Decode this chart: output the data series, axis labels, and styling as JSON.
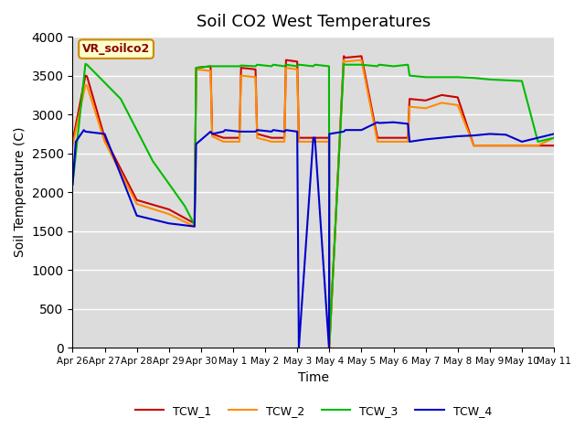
{
  "title": "Soil CO2 West Temperatures",
  "xlabel": "Time",
  "ylabel": "Soil Temperature (C)",
  "ylim": [
    0,
    4000
  ],
  "yticks": [
    0,
    500,
    1000,
    1500,
    2000,
    2500,
    3000,
    3500,
    4000
  ],
  "annotation_text": "VR_soilco2",
  "bg_color": "#dcdcdc",
  "lines": {
    "TCW_1": {
      "color": "#cc0000",
      "lw": 1.5
    },
    "TCW_2": {
      "color": "#ff8c00",
      "lw": 1.5
    },
    "TCW_3": {
      "color": "#00bb00",
      "lw": 1.5
    },
    "TCW_4": {
      "color": "#0000cc",
      "lw": 1.5
    }
  },
  "x_tick_labels": [
    "Apr 26",
    "Apr 27",
    "Apr 28",
    "Apr 29",
    "Apr 30",
    "May 1",
    "May 2",
    "May 3",
    "May 4",
    "May 5",
    "May 6",
    "May 7",
    "May 8",
    "May 9",
    "May 10",
    "May 11"
  ],
  "x_tick_positions": [
    0,
    1,
    2,
    3,
    4,
    5,
    6,
    7,
    8,
    9,
    10,
    11,
    12,
    13,
    14,
    15
  ],
  "TCW_1_x": [
    0.0,
    0.4,
    0.45,
    1.0,
    2.0,
    3.0,
    3.8,
    3.85,
    4.3,
    4.35,
    4.7,
    4.75,
    5.2,
    5.25,
    5.7,
    5.75,
    6.2,
    6.25,
    6.6,
    6.65,
    7.0,
    7.05,
    7.5,
    7.55,
    7.99,
    8.0,
    8.45,
    8.5,
    9.0,
    9.5,
    9.55,
    10.0,
    10.45,
    10.5,
    11.0,
    11.5,
    12.0,
    12.5,
    13.0,
    13.5,
    14.0,
    14.5,
    15.0
  ],
  "TCW_1_y": [
    2650,
    3500,
    3490,
    2700,
    1900,
    1780,
    1600,
    3600,
    3620,
    2750,
    2700,
    2700,
    2700,
    3600,
    3580,
    2750,
    2700,
    2700,
    2700,
    3700,
    3680,
    2700,
    2700,
    2700,
    2700,
    0,
    3750,
    3730,
    3750,
    2700,
    2700,
    2700,
    2700,
    3200,
    3180,
    3250,
    3220,
    2600,
    2600,
    2600,
    2600,
    2600,
    2600
  ],
  "TCW_2_x": [
    0.0,
    0.4,
    0.45,
    1.0,
    2.0,
    3.0,
    3.8,
    3.85,
    4.3,
    4.35,
    4.7,
    4.75,
    5.2,
    5.25,
    5.7,
    5.75,
    6.2,
    6.25,
    6.6,
    6.65,
    7.0,
    7.05,
    7.5,
    7.55,
    7.99,
    8.0,
    8.45,
    8.5,
    9.0,
    9.5,
    9.55,
    10.0,
    10.45,
    10.5,
    11.0,
    11.5,
    12.0,
    12.5,
    13.0,
    13.5,
    14.0,
    14.5,
    15.0
  ],
  "TCW_2_y": [
    2600,
    3380,
    3370,
    2650,
    1850,
    1720,
    1560,
    3580,
    3560,
    2720,
    2650,
    2650,
    2650,
    3500,
    3480,
    2700,
    2650,
    2650,
    2650,
    3600,
    3580,
    2650,
    2650,
    2650,
    2650,
    0,
    3700,
    3680,
    3700,
    2650,
    2650,
    2650,
    2650,
    3100,
    3080,
    3150,
    3120,
    2600,
    2600,
    2600,
    2600,
    2600,
    2700
  ],
  "TCW_3_x": [
    0.0,
    0.4,
    0.45,
    1.5,
    2.5,
    3.5,
    3.8,
    3.85,
    4.3,
    4.35,
    5.2,
    5.25,
    5.7,
    5.75,
    6.2,
    6.25,
    6.6,
    6.65,
    7.0,
    7.05,
    7.5,
    7.55,
    7.99,
    8.0,
    8.45,
    8.5,
    9.0,
    9.5,
    9.55,
    10.0,
    10.45,
    10.5,
    11.0,
    11.5,
    12.0,
    12.5,
    13.0,
    13.5,
    14.0,
    14.5,
    15.0
  ],
  "TCW_3_y": [
    2100,
    3650,
    3640,
    3200,
    2400,
    1820,
    1580,
    3600,
    3620,
    3620,
    3620,
    3630,
    3620,
    3640,
    3620,
    3640,
    3620,
    3640,
    3620,
    3640,
    3620,
    3640,
    3620,
    50,
    3650,
    3640,
    3640,
    3620,
    3640,
    3620,
    3640,
    3500,
    3480,
    3480,
    3480,
    3470,
    3450,
    3440,
    3430,
    2650,
    2700
  ],
  "TCW_4_x": [
    0.0,
    0.1,
    0.35,
    0.4,
    1.0,
    2.0,
    3.0,
    3.8,
    3.85,
    4.3,
    4.35,
    4.7,
    4.75,
    5.2,
    5.25,
    5.7,
    5.75,
    6.2,
    6.25,
    6.6,
    6.65,
    7.0,
    7.05,
    7.5,
    7.55,
    7.99,
    8.0,
    8.45,
    8.5,
    9.0,
    9.5,
    9.55,
    10.0,
    10.45,
    10.5,
    11.0,
    11.5,
    12.0,
    12.5,
    13.0,
    13.5,
    14.0,
    14.5,
    15.0
  ],
  "TCW_4_y": [
    2100,
    2650,
    2800,
    2780,
    2750,
    1700,
    1600,
    1560,
    2620,
    2780,
    2750,
    2780,
    2800,
    2780,
    2780,
    2780,
    2800,
    2780,
    2800,
    2780,
    2800,
    2780,
    0,
    2700,
    2700,
    0,
    2750,
    2780,
    2800,
    2800,
    2900,
    2890,
    2900,
    2880,
    2650,
    2680,
    2700,
    2720,
    2730,
    2750,
    2740,
    2650,
    2700,
    2750
  ]
}
